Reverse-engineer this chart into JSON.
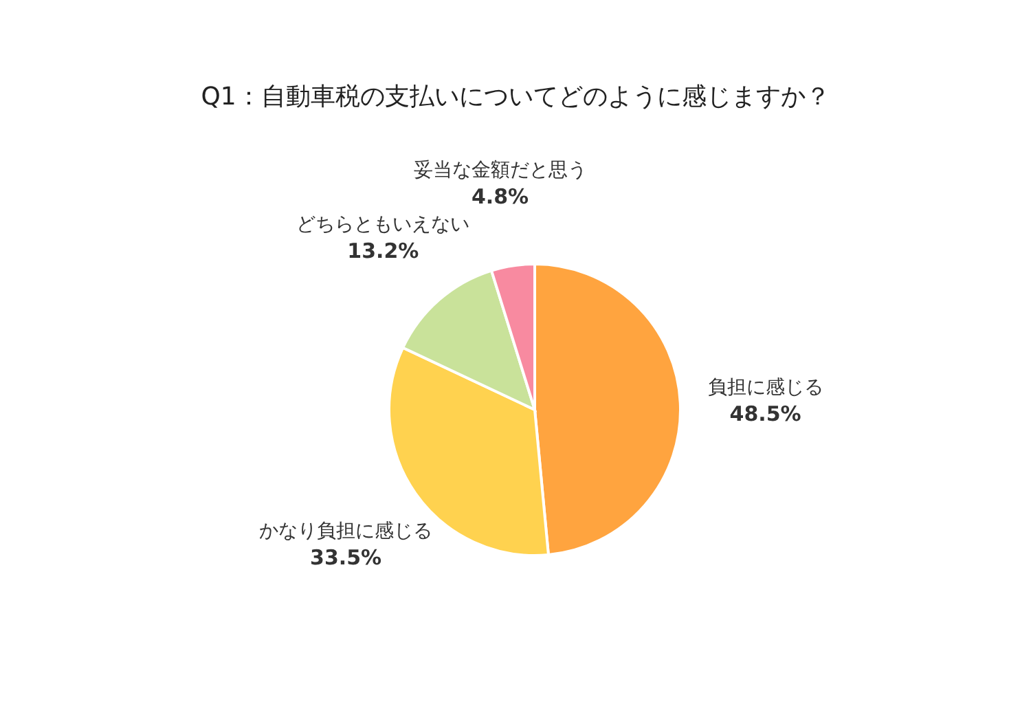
{
  "chart_data": {
    "type": "pie",
    "title": "Q1：自動車税の支払いについてどのように感じますか？",
    "categories": [
      "負担に感じる",
      "かなり負担に感じる",
      "どちらともいえない",
      "妥当な金額だと思う"
    ],
    "values": [
      48.5,
      33.5,
      13.2,
      4.8
    ],
    "colors": [
      "#ffa43f",
      "#ffd24f",
      "#c9e29a",
      "#f88aa0"
    ],
    "value_labels": [
      "48.5%",
      "33.5%",
      "13.2%",
      "4.8%"
    ]
  }
}
